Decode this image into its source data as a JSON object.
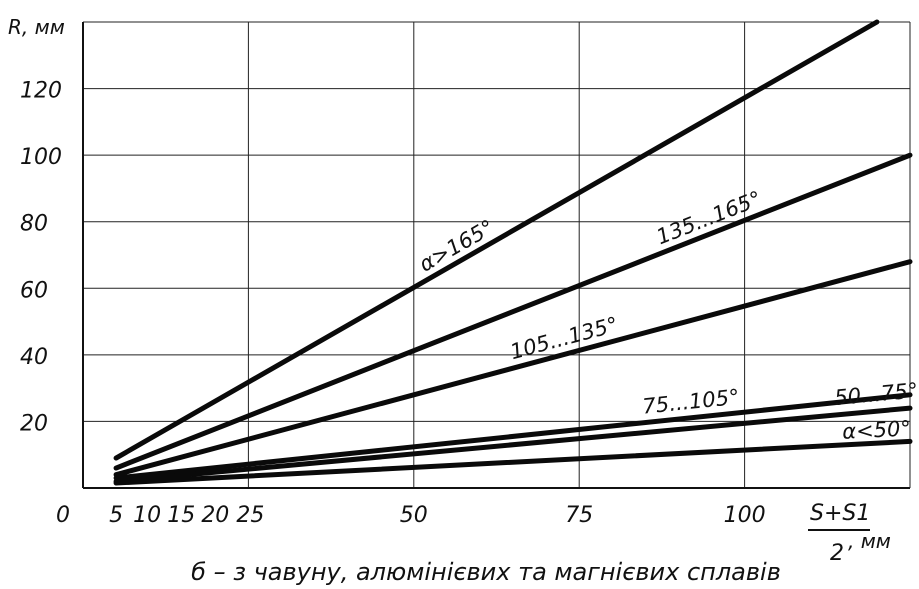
{
  "chart_data": {
    "type": "line",
    "title": "",
    "caption": "б – з чавуну, алюмінієвих та магнієвих сплавів",
    "ylabel": "R, мм",
    "xlabel": {
      "numerator": "S+S1",
      "denominator": "2",
      "unit": ", мм"
    },
    "origin_label": "0",
    "xlim": [
      0,
      125
    ],
    "ylim": [
      0,
      140
    ],
    "x_ticks": [
      5,
      10,
      15,
      20,
      25,
      50,
      75,
      100
    ],
    "x_tick_labels": [
      "5",
      "10",
      "15",
      "20",
      "25",
      "50",
      "75",
      "100"
    ],
    "x_grid": [
      25,
      50,
      75,
      100,
      125
    ],
    "y_ticks": [
      20,
      40,
      60,
      80,
      100,
      120
    ],
    "y_tick_labels": [
      "20",
      "40",
      "60",
      "80",
      "100",
      "120"
    ],
    "grid": true,
    "series": [
      {
        "name": "α>165°",
        "x": [
          5,
          120
        ],
        "y": [
          9,
          140
        ]
      },
      {
        "name": "135...165°",
        "x": [
          5,
          125
        ],
        "y": [
          6,
          100
        ]
      },
      {
        "name": "105...135°",
        "x": [
          5,
          125
        ],
        "y": [
          4,
          68
        ]
      },
      {
        "name": "75...105°",
        "x": [
          5,
          125
        ],
        "y": [
          3,
          28
        ]
      },
      {
        "name": "50...75°",
        "x": [
          5,
          125
        ],
        "y": [
          2,
          24
        ]
      },
      {
        "name": "α<50°",
        "x": [
          5,
          125
        ],
        "y": [
          1.5,
          14
        ]
      }
    ]
  }
}
